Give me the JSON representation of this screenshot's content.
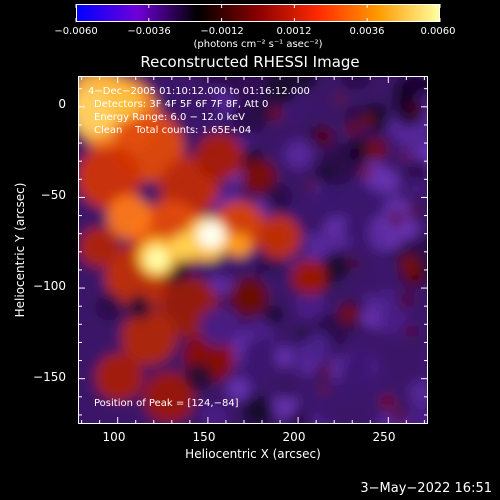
{
  "chart_data": {
    "type": "heatmap",
    "title": "Reconstructed RHESSI Image",
    "xlabel": "Heliocentric X (arcsec)",
    "ylabel": "Heliocentric Y (arcsec)",
    "xlim": [
      78,
      272
    ],
    "ylim": [
      -175,
      17
    ],
    "x_ticks": [
      "100",
      "150",
      "200",
      "250"
    ],
    "x_tick_values": [
      100,
      150,
      200,
      250
    ],
    "y_ticks": [
      "0",
      "−50",
      "−100",
      "−150"
    ],
    "y_tick_values": [
      0,
      -50,
      -100,
      -150
    ],
    "colorbar": {
      "ticks": [
        "−0.0060",
        "−0.0036",
        "−0.0012",
        "0.0012",
        "0.0036",
        "0.0060"
      ],
      "tick_values": [
        -0.006,
        -0.0036,
        -0.0012,
        0.0012,
        0.0036,
        0.006
      ],
      "range": [
        -0.006,
        0.006
      ],
      "units": "(photons cm⁻² s⁻¹ asec⁻²)",
      "colors": [
        "#0000ff",
        "#6f00d8",
        "#000000",
        "#8a0000",
        "#ff2a00",
        "#ff9b00",
        "#ffffa0"
      ]
    },
    "annotations": {
      "time_range": "4−Dec−2005 01:10:12.000 to 01:16:12.000",
      "detectors": "Detectors: 3F 4F 5F 6F 7F 8F, Att 0",
      "energy_range": "Energy Range: 6.0 − 12.0 keV",
      "method_counts": "Clean    Total counts: 1.65E+04",
      "peak": "Position of Peak = [124,−84]"
    },
    "peak_position": [
      124,
      -84
    ]
  },
  "footer": {
    "timestamp": "3−May−2022 16:51"
  }
}
